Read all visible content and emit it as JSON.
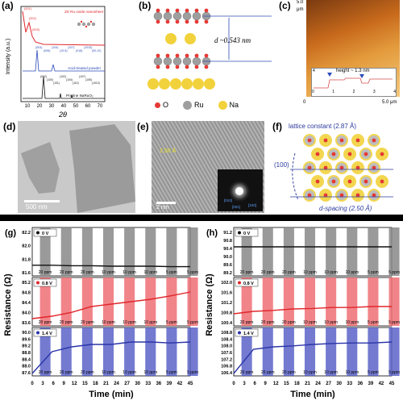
{
  "panels": {
    "a": {
      "label": "(a)",
      "traces": [
        {
          "name": "2D Ru oxide nanosheet",
          "color": "#e0262b"
        },
        {
          "name": "Acid-treated powder",
          "color": "#2b4bb8"
        },
        {
          "name": "Pristine NaRuO₂",
          "color": "#111111"
        }
      ],
      "xlabel": "2θ",
      "ylabel": "Intensity (a.u.)",
      "xticks": [
        "10",
        "20",
        "30",
        "40",
        "50",
        "60",
        "70"
      ],
      "peaks_red": [
        "(001)",
        "(002)",
        "(003)"
      ],
      "peaks_blue": [
        "(003)",
        "(006)",
        "(104)",
        "(10-5)",
        "(107)",
        "(018)",
        "(1010)",
        "(00,12)"
      ],
      "peaks_black": [
        "(002)",
        "(100)",
        "(101)",
        "(102)",
        "(104)",
        "(110)",
        "(107)",
        "(105)",
        "(1010)"
      ]
    },
    "b": {
      "label": "(b)",
      "d_label": "d ~0.543 nm",
      "legend": [
        {
          "name": "O",
          "color": "#e53935"
        },
        {
          "name": "Ru",
          "color": "#9e9e9e"
        },
        {
          "name": "Na",
          "color": "#f2d23c"
        }
      ]
    },
    "c": {
      "label": "(c)",
      "units": "μm",
      "top_tick": "5.0",
      "x_start": "0",
      "x_end": "5.0 μm",
      "inset_title": "height ~ 1.3 nm",
      "inset_xticks": [
        "0",
        "1",
        "2",
        "3",
        "4"
      ],
      "inset_y": "4",
      "inset_y_unit": "nm",
      "inset_x_unit": "μm"
    },
    "d": {
      "label": "(d)",
      "scale": "500 nm"
    },
    "e": {
      "label": "(e)",
      "scale": "2 nm",
      "spacing": "2.50 Å",
      "dir1": "[010]",
      "dir2": "[001]",
      "dir3": "[100]"
    },
    "f": {
      "label": "(f)",
      "lattice": "lattice constant (2.87 Å)",
      "plane": "(100)",
      "dspacing": "d-spacing (2.50 Å)"
    }
  },
  "sensing": [
    {
      "label": "(g)",
      "ylabel": "Resistance (Ω)",
      "xlabel": "Time (min)",
      "xticks": [
        "0",
        "3",
        "6",
        "9",
        "12",
        "15",
        "18",
        "21",
        "24",
        "27",
        "30",
        "33",
        "36",
        "39",
        "42",
        "45"
      ],
      "ppm": [
        "20 ppm",
        "20 ppm",
        "20 ppm",
        "10 ppm",
        "10 ppm",
        "10 ppm",
        "5 ppm",
        "5 ppm"
      ],
      "subplots": [
        {
          "bias": "0 V",
          "color": "#888888",
          "line": "#111111",
          "yticks": [
            "82.2",
            "82.0",
            "81.8",
            "81.6"
          ],
          "baseline": [
            0.78,
            0.78,
            0.79,
            0.79,
            0.8,
            0.8,
            0.8,
            0.81,
            0.81
          ]
        },
        {
          "bias": "0.8 V",
          "color": "#ef6f74",
          "line": "#e0262b",
          "yticks": [
            "85.2",
            "84.8",
            "84.4",
            "84.0",
            "83.6"
          ],
          "baseline": [
            0.85,
            0.8,
            0.72,
            0.6,
            0.55,
            0.5,
            0.45,
            0.38,
            0.3
          ]
        },
        {
          "bias": "1.4 V",
          "color": "#5b63c8",
          "line": "#2b35a8",
          "yticks": [
            "90.0",
            "89.6",
            "89.2",
            "88.8",
            "88.4",
            "88.0",
            "87.6"
          ],
          "baseline": [
            0.95,
            0.5,
            0.4,
            0.35,
            0.35,
            0.3,
            0.3,
            0.32,
            0.3
          ]
        }
      ]
    },
    {
      "label": "(h)",
      "ylabel": "Resistance (Ω)",
      "xlabel": "Time (min)",
      "xticks": [
        "0",
        "3",
        "6",
        "9",
        "12",
        "15",
        "18",
        "21",
        "24",
        "27",
        "30",
        "33",
        "36",
        "39",
        "42",
        "45"
      ],
      "ppm": [
        "20 ppm",
        "20 ppm",
        "20 ppm",
        "10 ppm",
        "10 ppm",
        "10 ppm",
        "5 ppm",
        "5 ppm"
      ],
      "subplots": [
        {
          "bias": "0 V",
          "color": "#888888",
          "line": "#111111",
          "yticks": [
            "91.2",
            "90.8",
            "90.4",
            "90.0",
            "89.6",
            "89.2"
          ],
          "baseline": [
            0.4,
            0.4,
            0.4,
            0.4,
            0.4,
            0.4,
            0.4,
            0.4,
            0.4
          ]
        },
        {
          "bias": "0.8 V",
          "color": "#ef6f74",
          "line": "#e0262b",
          "yticks": [
            "102.0",
            "101.6",
            "101.2",
            "100.8",
            "100.4"
          ],
          "baseline": [
            0.75,
            0.7,
            0.68,
            0.65,
            0.64,
            0.62,
            0.62,
            0.6,
            0.6
          ]
        },
        {
          "bias": "1.4 V",
          "color": "#5b63c8",
          "line": "#2b35a8",
          "yticks": [
            "108.8",
            "108.4",
            "108.0",
            "107.6",
            "107.2",
            "106.8",
            "106.4"
          ],
          "baseline": [
            0.95,
            0.45,
            0.4,
            0.38,
            0.35,
            0.33,
            0.32,
            0.32,
            0.3
          ]
        }
      ]
    }
  ]
}
